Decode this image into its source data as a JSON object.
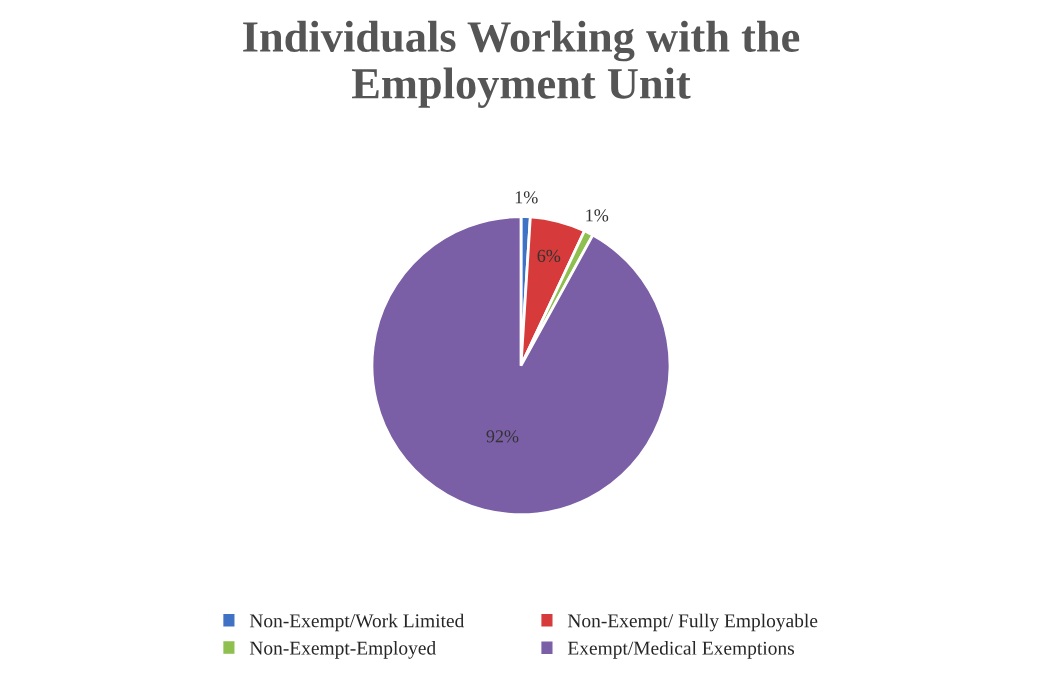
{
  "chart_data": {
    "type": "pie",
    "title": "Individuals Working with the Employment Unit",
    "categories": [
      "Non-Exempt/Work Limited",
      "Non-Exempt/ Fully Employable",
      "Non-Exempt-Employed",
      "Exempt/Medical Exemptions"
    ],
    "values": [
      1,
      6,
      1,
      92
    ],
    "colors": [
      "#3f72c4",
      "#d63a3a",
      "#8fbf4f",
      "#7a5ea6"
    ],
    "value_labels": [
      "1%",
      "6%",
      "1%",
      "92%"
    ],
    "legend": "bottom"
  }
}
